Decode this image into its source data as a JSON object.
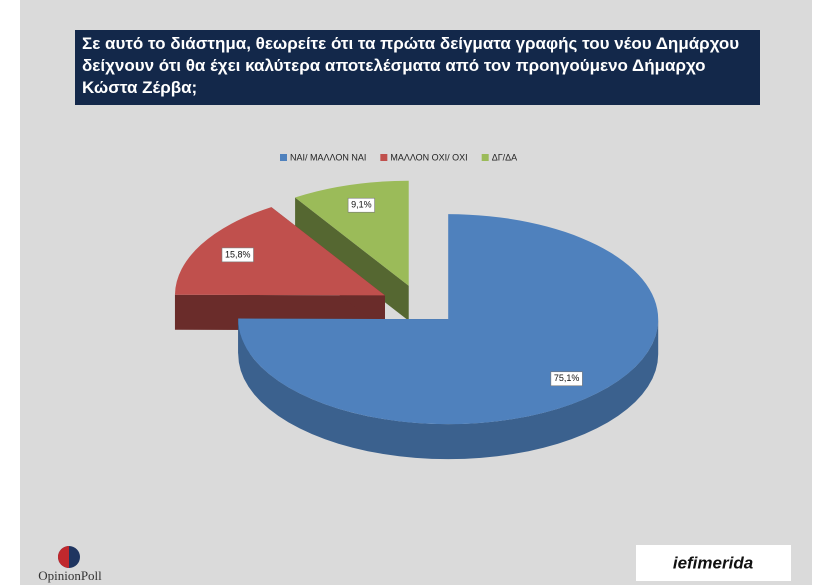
{
  "chart_data": {
    "type": "pie",
    "title": "Σε αυτό το διάστημα, θεωρείτε ότι τα πρώτα δείγματα γραφής του νέου Δημάρχου δείχνουν ότι θα έχει καλύτερα αποτελέσματα από τον προηγούμενο Δήμαρχο Κώστα Ζέρβα;",
    "categories": [
      "ΝΑΙ/ ΜΑΛΛΟΝ ΝΑΙ",
      "ΜΑΛΛΟΝ ΟΧΙ/ ΟΧΙ",
      "ΔΓ/ΔΑ"
    ],
    "values": [
      75.1,
      15.8,
      9.1
    ],
    "value_labels": [
      "75,1%",
      "15,8%",
      "9,1%"
    ],
    "colors": [
      "#4f81bd",
      "#c0504d",
      "#9bbb59"
    ],
    "legend": "top"
  },
  "branding": {
    "left": "OpinionPoll",
    "right": "iefimerida"
  }
}
